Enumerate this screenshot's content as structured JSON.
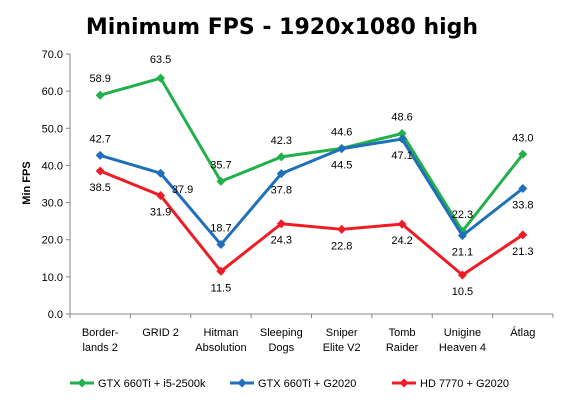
{
  "chart_data": {
    "type": "line",
    "title": "Minimum FPS - 1920x1080 high",
    "ylabel": "Min FPS",
    "xlabel": "",
    "ylim": [
      0,
      70
    ],
    "yticks": [
      "0.0",
      "10.0",
      "20.0",
      "30.0",
      "40.0",
      "50.0",
      "60.0",
      "70.0"
    ],
    "grid": false,
    "legend_position": "bottom",
    "categories": [
      [
        "Border-",
        "lands 2"
      ],
      [
        "GRID 2"
      ],
      [
        "Hitman",
        "Absolution"
      ],
      [
        "Sleeping",
        "Dogs"
      ],
      [
        "Sniper",
        "Elite V2"
      ],
      [
        "Tomb",
        "Raider"
      ],
      [
        "Unigine",
        "Heaven 4"
      ],
      [
        "Átlag"
      ]
    ],
    "series": [
      {
        "name": "GTX 660Ti + i5-2500k",
        "color": "#22b04b",
        "values": [
          58.9,
          63.5,
          35.7,
          42.3,
          44.6,
          48.6,
          22.3,
          43.0
        ],
        "labels": [
          "58.9",
          "63.5",
          "35.7",
          "42.3",
          "44.6",
          "48.6",
          "22.3",
          "43.0"
        ]
      },
      {
        "name": "GTX 660Ti + G2020",
        "color": "#1f6fba",
        "values": [
          42.7,
          37.9,
          18.7,
          37.8,
          44.5,
          47.1,
          21.1,
          33.8
        ],
        "labels": [
          "42.7",
          "37.9",
          "18.7",
          "37.8",
          "44.5",
          "47.1",
          "21.1",
          "33.8"
        ]
      },
      {
        "name": "HD 7770 + G2020",
        "color": "#ee1c25",
        "values": [
          38.5,
          31.9,
          11.5,
          24.3,
          22.8,
          24.2,
          10.5,
          21.3
        ],
        "labels": [
          "38.5",
          "31.9",
          "11.5",
          "24.3",
          "22.8",
          "24.2",
          "10.5",
          "21.3"
        ]
      }
    ]
  }
}
